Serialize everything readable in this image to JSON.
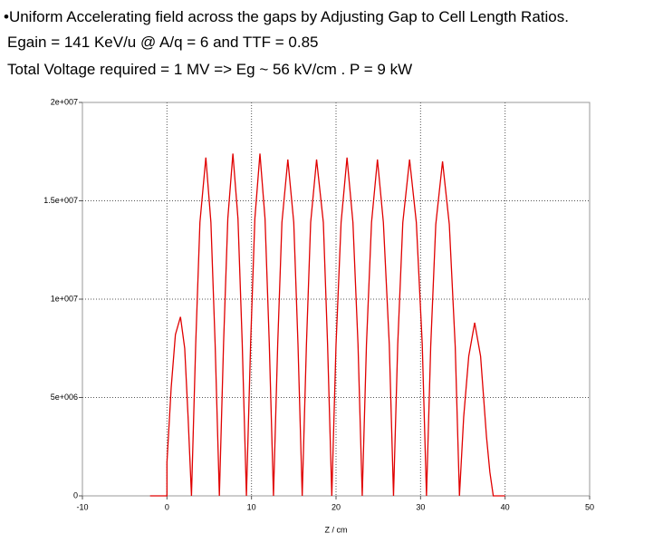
{
  "header": {
    "lines": [
      "•Uniform Accelerating field across the gaps  by Adjusting Gap to Cell Length Ratios.",
      "Egain = 141 KeV/u @ A/q = 6 and TTF = 0.85",
      "Total Voltage required = 1 MV  =>   Eg ~ 56 kV/cm . P = 9 kW"
    ]
  },
  "chart_data": {
    "type": "line",
    "xlabel": "Z / cm",
    "x": [
      -2,
      0,
      0,
      0.5,
      1.0,
      1.6,
      2.1,
      2.5,
      2.9,
      3.4,
      3.9,
      4.6,
      5.2,
      5.7,
      6.2,
      6.7,
      7.2,
      7.8,
      8.4,
      8.9,
      9.4,
      9.9,
      10.4,
      11.0,
      11.6,
      12.1,
      12.6,
      13.1,
      13.6,
      14.3,
      15.0,
      15.5,
      16.0,
      16.5,
      17.0,
      17.7,
      18.5,
      19.0,
      19.5,
      20.0,
      20.6,
      21.3,
      22.0,
      22.6,
      23.1,
      23.6,
      24.2,
      24.9,
      25.6,
      26.3,
      26.8,
      27.3,
      27.9,
      28.7,
      29.5,
      30.2,
      30.7,
      31.2,
      31.8,
      32.6,
      33.4,
      34.1,
      34.6,
      35.1,
      35.7,
      36.4,
      37.1,
      37.8,
      38.2,
      38.6,
      40
    ],
    "series": [
      {
        "color": "#e00000",
        "values": [
          0,
          0,
          1700000,
          5500000,
          8200000,
          9100000,
          7500000,
          4000000,
          0,
          7700000,
          13900000,
          17200000,
          13900000,
          7700000,
          0,
          7800000,
          14100000,
          17400000,
          14100000,
          7800000,
          0,
          7800000,
          14100000,
          17400000,
          14100000,
          7800000,
          0,
          7700000,
          13900000,
          17100000,
          13900000,
          7700000,
          0,
          7700000,
          13900000,
          17100000,
          13900000,
          7700000,
          0,
          7700000,
          13900000,
          17200000,
          13900000,
          7700000,
          0,
          7700000,
          13900000,
          17100000,
          13900000,
          7700000,
          0,
          7700000,
          13900000,
          17100000,
          13900000,
          7700000,
          0,
          7600000,
          13800000,
          17000000,
          13800000,
          7600000,
          0,
          4000000,
          7100000,
          8800000,
          7100000,
          3000000,
          1200000,
          0,
          0
        ]
      }
    ],
    "xlim": [
      -10,
      50
    ],
    "xticks": [
      -10,
      0,
      10,
      20,
      30,
      40,
      50
    ],
    "ylim": [
      0,
      20000000
    ],
    "yticks": [
      0,
      {
        "value": 5000000,
        "label": "5e+006"
      },
      {
        "value": 10000000,
        "label": "1e+007"
      },
      {
        "value": 15000000,
        "label": "1.5e+007"
      },
      {
        "value": 20000000,
        "label": "2e+007"
      }
    ],
    "grid": true
  }
}
